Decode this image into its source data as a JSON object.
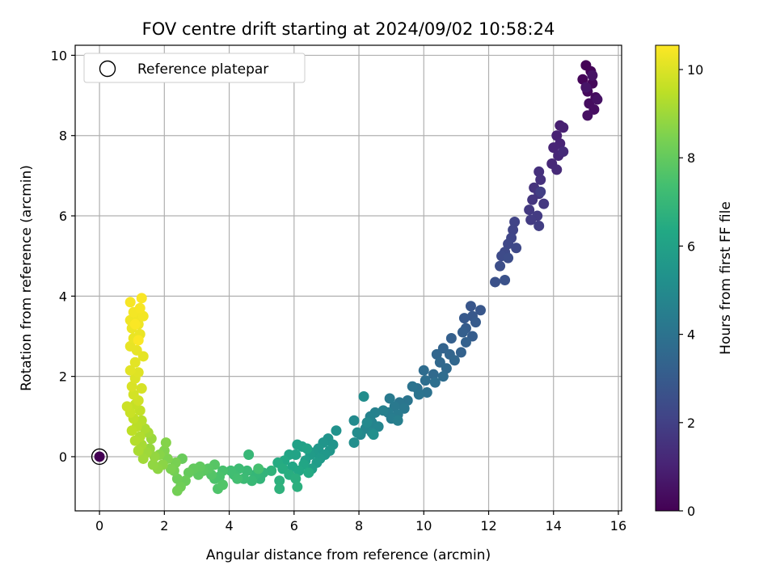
{
  "chart_data": {
    "type": "scatter",
    "title": "FOV centre drift starting at 2024/09/02 10:58:24",
    "xlabel": "Angular distance from reference (arcmin)",
    "ylabel": "Rotation from reference (arcmin)",
    "xlim": [
      -0.75,
      16.1
    ],
    "ylim": [
      -1.35,
      10.25
    ],
    "xticks": [
      0,
      2,
      4,
      6,
      8,
      10,
      12,
      14,
      16
    ],
    "yticks": [
      0,
      2,
      4,
      6,
      8,
      10
    ],
    "grid": true,
    "legend": {
      "position": "top-left",
      "entries": [
        "Reference platepar"
      ]
    },
    "colorbar": {
      "label": "Hours from first FF file",
      "colormap": "viridis",
      "range": [
        0,
        10.55
      ],
      "ticks": [
        0,
        2,
        4,
        6,
        8,
        10
      ]
    },
    "reference_point": {
      "x": 0,
      "y": 0,
      "hours": 0
    },
    "series": [
      {
        "points": [
          {
            "x": 15.0,
            "y": 9.75,
            "h": 0.05
          },
          {
            "x": 15.15,
            "y": 9.6,
            "h": 0.1
          },
          {
            "x": 14.9,
            "y": 9.4,
            "h": 0.15
          },
          {
            "x": 15.2,
            "y": 9.3,
            "h": 0.2
          },
          {
            "x": 15.05,
            "y": 9.1,
            "h": 0.25
          },
          {
            "x": 15.3,
            "y": 8.95,
            "h": 0.3
          },
          {
            "x": 15.1,
            "y": 8.8,
            "h": 0.35
          },
          {
            "x": 15.25,
            "y": 8.65,
            "h": 0.4
          },
          {
            "x": 15.05,
            "y": 8.5,
            "h": 0.45
          },
          {
            "x": 15.35,
            "y": 8.9,
            "h": 0.5
          },
          {
            "x": 15.2,
            "y": 9.5,
            "h": 0.55
          },
          {
            "x": 15.0,
            "y": 9.2,
            "h": 0.6
          },
          {
            "x": 14.2,
            "y": 8.25,
            "h": 0.9
          },
          {
            "x": 14.3,
            "y": 8.2,
            "h": 0.95
          },
          {
            "x": 14.1,
            "y": 8.0,
            "h": 1.0
          },
          {
            "x": 14.2,
            "y": 7.8,
            "h": 1.05
          },
          {
            "x": 14.0,
            "y": 7.7,
            "h": 1.1
          },
          {
            "x": 14.15,
            "y": 7.5,
            "h": 1.15
          },
          {
            "x": 13.95,
            "y": 7.3,
            "h": 1.2
          },
          {
            "x": 14.1,
            "y": 7.15,
            "h": 1.25
          },
          {
            "x": 14.3,
            "y": 7.6,
            "h": 1.3
          },
          {
            "x": 13.55,
            "y": 7.1,
            "h": 1.45
          },
          {
            "x": 13.6,
            "y": 6.9,
            "h": 1.5
          },
          {
            "x": 13.4,
            "y": 6.7,
            "h": 1.55
          },
          {
            "x": 13.55,
            "y": 6.55,
            "h": 1.6
          },
          {
            "x": 13.35,
            "y": 6.4,
            "h": 1.65
          },
          {
            "x": 13.7,
            "y": 6.3,
            "h": 1.7
          },
          {
            "x": 13.25,
            "y": 6.15,
            "h": 1.75
          },
          {
            "x": 13.5,
            "y": 6.0,
            "h": 1.8
          },
          {
            "x": 13.3,
            "y": 5.9,
            "h": 1.85
          },
          {
            "x": 13.55,
            "y": 5.75,
            "h": 1.9
          },
          {
            "x": 13.6,
            "y": 6.6,
            "h": 1.95
          },
          {
            "x": 12.8,
            "y": 5.85,
            "h": 2.1
          },
          {
            "x": 12.75,
            "y": 5.65,
            "h": 2.15
          },
          {
            "x": 12.7,
            "y": 5.45,
            "h": 2.2
          },
          {
            "x": 12.6,
            "y": 5.3,
            "h": 2.25
          },
          {
            "x": 12.85,
            "y": 5.2,
            "h": 2.3
          },
          {
            "x": 12.5,
            "y": 5.1,
            "h": 2.35
          },
          {
            "x": 12.4,
            "y": 5.0,
            "h": 2.4
          },
          {
            "x": 12.6,
            "y": 4.95,
            "h": 2.45
          },
          {
            "x": 12.35,
            "y": 4.75,
            "h": 2.5
          },
          {
            "x": 12.2,
            "y": 4.35,
            "h": 2.6
          },
          {
            "x": 12.5,
            "y": 4.4,
            "h": 2.65
          },
          {
            "x": 11.45,
            "y": 3.75,
            "h": 2.8
          },
          {
            "x": 11.75,
            "y": 3.65,
            "h": 2.85
          },
          {
            "x": 11.5,
            "y": 3.5,
            "h": 2.9
          },
          {
            "x": 11.25,
            "y": 3.45,
            "h": 2.95
          },
          {
            "x": 11.6,
            "y": 3.35,
            "h": 3.0
          },
          {
            "x": 11.3,
            "y": 3.2,
            "h": 3.05
          },
          {
            "x": 11.5,
            "y": 3.0,
            "h": 3.1
          },
          {
            "x": 11.2,
            "y": 3.1,
            "h": 3.15
          },
          {
            "x": 10.85,
            "y": 2.95,
            "h": 3.2
          },
          {
            "x": 11.3,
            "y": 2.85,
            "h": 3.25
          },
          {
            "x": 11.15,
            "y": 2.6,
            "h": 3.3
          },
          {
            "x": 10.6,
            "y": 2.7,
            "h": 3.35
          },
          {
            "x": 10.8,
            "y": 2.55,
            "h": 3.4
          },
          {
            "x": 10.4,
            "y": 2.55,
            "h": 3.45
          },
          {
            "x": 10.95,
            "y": 2.4,
            "h": 3.5
          },
          {
            "x": 10.5,
            "y": 2.35,
            "h": 3.55
          },
          {
            "x": 10.7,
            "y": 2.2,
            "h": 3.6
          },
          {
            "x": 10.3,
            "y": 2.05,
            "h": 3.65
          },
          {
            "x": 10.0,
            "y": 2.15,
            "h": 3.7
          },
          {
            "x": 10.6,
            "y": 2.0,
            "h": 3.75
          },
          {
            "x": 10.05,
            "y": 1.9,
            "h": 3.8
          },
          {
            "x": 10.35,
            "y": 1.85,
            "h": 3.85
          },
          {
            "x": 9.8,
            "y": 1.7,
            "h": 3.9
          },
          {
            "x": 10.1,
            "y": 1.6,
            "h": 3.95
          },
          {
            "x": 9.65,
            "y": 1.75,
            "h": 4.0
          },
          {
            "x": 9.85,
            "y": 1.55,
            "h": 4.05
          },
          {
            "x": 9.5,
            "y": 1.4,
            "h": 4.1
          },
          {
            "x": 9.25,
            "y": 1.35,
            "h": 4.15
          },
          {
            "x": 9.4,
            "y": 1.2,
            "h": 4.2
          },
          {
            "x": 9.1,
            "y": 1.25,
            "h": 4.25
          },
          {
            "x": 8.95,
            "y": 1.45,
            "h": 4.3
          },
          {
            "x": 9.2,
            "y": 1.05,
            "h": 4.35
          },
          {
            "x": 8.9,
            "y": 1.1,
            "h": 4.4
          },
          {
            "x": 9.0,
            "y": 0.95,
            "h": 4.45
          },
          {
            "x": 9.2,
            "y": 0.9,
            "h": 4.5
          },
          {
            "x": 8.75,
            "y": 1.15,
            "h": 4.55
          },
          {
            "x": 8.5,
            "y": 1.1,
            "h": 4.6
          },
          {
            "x": 8.35,
            "y": 1.0,
            "h": 4.65
          },
          {
            "x": 8.4,
            "y": 0.85,
            "h": 4.7
          },
          {
            "x": 8.6,
            "y": 0.75,
            "h": 4.75
          },
          {
            "x": 8.2,
            "y": 0.7,
            "h": 4.8
          },
          {
            "x": 8.4,
            "y": 0.6,
            "h": 4.85
          },
          {
            "x": 8.05,
            "y": 0.55,
            "h": 4.9
          },
          {
            "x": 8.25,
            "y": 0.85,
            "h": 4.95
          },
          {
            "x": 7.85,
            "y": 0.9,
            "h": 5.0
          },
          {
            "x": 7.95,
            "y": 0.6,
            "h": 5.05
          },
          {
            "x": 8.15,
            "y": 1.5,
            "h": 5.1
          },
          {
            "x": 7.85,
            "y": 0.35,
            "h": 5.15
          },
          {
            "x": 8.45,
            "y": 0.55,
            "h": 5.2
          },
          {
            "x": 7.3,
            "y": 0.65,
            "h": 5.3
          },
          {
            "x": 7.05,
            "y": 0.45,
            "h": 5.35
          },
          {
            "x": 7.2,
            "y": 0.3,
            "h": 5.4
          },
          {
            "x": 6.9,
            "y": 0.35,
            "h": 5.45
          },
          {
            "x": 7.1,
            "y": 0.15,
            "h": 5.5
          },
          {
            "x": 6.75,
            "y": 0.2,
            "h": 5.55
          },
          {
            "x": 6.95,
            "y": 0.05,
            "h": 5.6
          },
          {
            "x": 6.6,
            "y": 0.1,
            "h": 5.65
          },
          {
            "x": 6.8,
            "y": -0.05,
            "h": 5.7
          },
          {
            "x": 6.5,
            "y": 0.05,
            "h": 5.75
          },
          {
            "x": 6.7,
            "y": -0.15,
            "h": 5.8
          },
          {
            "x": 6.35,
            "y": -0.1,
            "h": 5.85
          },
          {
            "x": 6.55,
            "y": -0.3,
            "h": 5.9
          },
          {
            "x": 6.25,
            "y": 0.25,
            "h": 5.95
          },
          {
            "x": 6.1,
            "y": 0.3,
            "h": 6.0
          },
          {
            "x": 6.4,
            "y": 0.2,
            "h": 6.05
          },
          {
            "x": 6.05,
            "y": 0.05,
            "h": 6.1
          },
          {
            "x": 5.85,
            "y": 0.05,
            "h": 6.15
          },
          {
            "x": 6.3,
            "y": -0.2,
            "h": 6.2
          },
          {
            "x": 5.95,
            "y": -0.25,
            "h": 6.25
          },
          {
            "x": 6.15,
            "y": -0.35,
            "h": 6.3
          },
          {
            "x": 5.7,
            "y": -0.1,
            "h": 6.35
          },
          {
            "x": 6.45,
            "y": -0.4,
            "h": 6.4
          },
          {
            "x": 5.5,
            "y": -0.15,
            "h": 6.45
          },
          {
            "x": 5.65,
            "y": -0.3,
            "h": 6.5
          },
          {
            "x": 5.85,
            "y": -0.45,
            "h": 6.55
          },
          {
            "x": 6.05,
            "y": -0.55,
            "h": 6.6
          },
          {
            "x": 6.1,
            "y": -0.75,
            "h": 6.65
          },
          {
            "x": 5.55,
            "y": -0.6,
            "h": 6.7
          },
          {
            "x": 5.55,
            "y": -0.8,
            "h": 6.75
          },
          {
            "x": 5.3,
            "y": -0.35,
            "h": 6.8
          },
          {
            "x": 5.05,
            "y": -0.4,
            "h": 6.85
          },
          {
            "x": 4.95,
            "y": -0.55,
            "h": 6.9
          },
          {
            "x": 4.8,
            "y": -0.45,
            "h": 6.95
          },
          {
            "x": 4.6,
            "y": 0.05,
            "h": 7.0
          },
          {
            "x": 4.7,
            "y": -0.6,
            "h": 7.05
          },
          {
            "x": 4.55,
            "y": -0.35,
            "h": 7.1
          },
          {
            "x": 4.45,
            "y": -0.55,
            "h": 7.15
          },
          {
            "x": 4.3,
            "y": -0.3,
            "h": 7.2
          },
          {
            "x": 4.15,
            "y": -0.45,
            "h": 7.25
          },
          {
            "x": 4.05,
            "y": -0.35,
            "h": 7.3
          },
          {
            "x": 4.25,
            "y": -0.55,
            "h": 7.35
          },
          {
            "x": 4.9,
            "y": -0.3,
            "h": 7.4
          },
          {
            "x": 3.8,
            "y": -0.35,
            "h": 7.45
          },
          {
            "x": 3.7,
            "y": -0.5,
            "h": 7.5
          },
          {
            "x": 3.55,
            "y": -0.55,
            "h": 7.55
          },
          {
            "x": 3.65,
            "y": -0.8,
            "h": 7.6
          },
          {
            "x": 3.8,
            "y": -0.7,
            "h": 7.65
          },
          {
            "x": 3.45,
            "y": -0.45,
            "h": 7.7
          },
          {
            "x": 3.55,
            "y": -0.2,
            "h": 7.75
          },
          {
            "x": 3.35,
            "y": -0.3,
            "h": 7.8
          },
          {
            "x": 3.2,
            "y": -0.35,
            "h": 7.85
          },
          {
            "x": 3.05,
            "y": -0.45,
            "h": 7.9
          },
          {
            "x": 3.1,
            "y": -0.25,
            "h": 7.95
          },
          {
            "x": 2.9,
            "y": -0.3,
            "h": 8.0
          },
          {
            "x": 2.75,
            "y": -0.4,
            "h": 8.05
          },
          {
            "x": 2.55,
            "y": -0.05,
            "h": 8.1
          },
          {
            "x": 2.65,
            "y": -0.6,
            "h": 8.15
          },
          {
            "x": 2.4,
            "y": -0.55,
            "h": 8.2
          },
          {
            "x": 2.5,
            "y": -0.75,
            "h": 8.25
          },
          {
            "x": 2.4,
            "y": -0.85,
            "h": 8.3
          },
          {
            "x": 2.3,
            "y": -0.35,
            "h": 8.35
          },
          {
            "x": 2.35,
            "y": -0.15,
            "h": 8.4
          },
          {
            "x": 2.2,
            "y": -0.3,
            "h": 8.45
          },
          {
            "x": 2.1,
            "y": -0.05,
            "h": 8.5
          },
          {
            "x": 2.0,
            "y": 0.15,
            "h": 8.55
          },
          {
            "x": 2.05,
            "y": 0.35,
            "h": 8.6
          },
          {
            "x": 1.85,
            "y": 0.05,
            "h": 8.65
          },
          {
            "x": 1.95,
            "y": -0.2,
            "h": 8.7
          },
          {
            "x": 1.8,
            "y": -0.3,
            "h": 8.75
          },
          {
            "x": 1.65,
            "y": -0.2,
            "h": 8.8
          },
          {
            "x": 1.7,
            "y": 0.0,
            "h": 8.85
          },
          {
            "x": 1.55,
            "y": 0.2,
            "h": 8.9
          },
          {
            "x": 1.6,
            "y": 0.45,
            "h": 8.95
          },
          {
            "x": 1.45,
            "y": 0.1,
            "h": 9.0
          },
          {
            "x": 1.35,
            "y": -0.05,
            "h": 9.05
          },
          {
            "x": 1.5,
            "y": 0.6,
            "h": 9.1
          },
          {
            "x": 1.3,
            "y": 0.3,
            "h": 9.15
          },
          {
            "x": 1.2,
            "y": 0.15,
            "h": 9.2
          },
          {
            "x": 1.4,
            "y": 0.7,
            "h": 9.25
          },
          {
            "x": 1.25,
            "y": 0.5,
            "h": 9.3
          },
          {
            "x": 1.1,
            "y": 0.4,
            "h": 9.35
          },
          {
            "x": 1.3,
            "y": 0.9,
            "h": 9.4
          },
          {
            "x": 1.15,
            "y": 0.75,
            "h": 9.45
          },
          {
            "x": 1.0,
            "y": 0.65,
            "h": 9.5
          },
          {
            "x": 1.05,
            "y": 0.95,
            "h": 9.55
          },
          {
            "x": 1.25,
            "y": 1.15,
            "h": 9.6
          },
          {
            "x": 1.1,
            "y": 1.3,
            "h": 9.65
          },
          {
            "x": 0.95,
            "y": 1.1,
            "h": 9.7
          },
          {
            "x": 0.85,
            "y": 1.25,
            "h": 9.75
          },
          {
            "x": 1.2,
            "y": 1.4,
            "h": 9.8
          },
          {
            "x": 1.05,
            "y": 1.55,
            "h": 9.85
          },
          {
            "x": 1.3,
            "y": 1.7,
            "h": 9.9
          },
          {
            "x": 1.0,
            "y": 1.75,
            "h": 9.95
          },
          {
            "x": 1.1,
            "y": 1.95,
            "h": 10.0
          },
          {
            "x": 1.2,
            "y": 2.1,
            "h": 10.05
          },
          {
            "x": 0.95,
            "y": 2.15,
            "h": 10.1
          },
          {
            "x": 1.1,
            "y": 2.35,
            "h": 10.12
          },
          {
            "x": 1.35,
            "y": 2.5,
            "h": 10.15
          },
          {
            "x": 1.15,
            "y": 2.65,
            "h": 10.18
          },
          {
            "x": 0.95,
            "y": 2.75,
            "h": 10.2
          },
          {
            "x": 1.05,
            "y": 2.95,
            "h": 10.23
          },
          {
            "x": 1.25,
            "y": 3.05,
            "h": 10.25
          },
          {
            "x": 1.0,
            "y": 3.2,
            "h": 10.28
          },
          {
            "x": 1.2,
            "y": 3.3,
            "h": 10.3
          },
          {
            "x": 0.95,
            "y": 3.4,
            "h": 10.33
          },
          {
            "x": 1.15,
            "y": 3.5,
            "h": 10.35
          },
          {
            "x": 1.35,
            "y": 3.5,
            "h": 10.38
          },
          {
            "x": 1.05,
            "y": 3.6,
            "h": 10.4
          },
          {
            "x": 1.25,
            "y": 3.7,
            "h": 10.43
          },
          {
            "x": 0.95,
            "y": 3.85,
            "h": 10.45
          },
          {
            "x": 1.3,
            "y": 3.95,
            "h": 10.48
          },
          {
            "x": 1.1,
            "y": 3.3,
            "h": 10.5
          },
          {
            "x": 1.2,
            "y": 2.9,
            "h": 10.52
          }
        ]
      }
    ]
  }
}
